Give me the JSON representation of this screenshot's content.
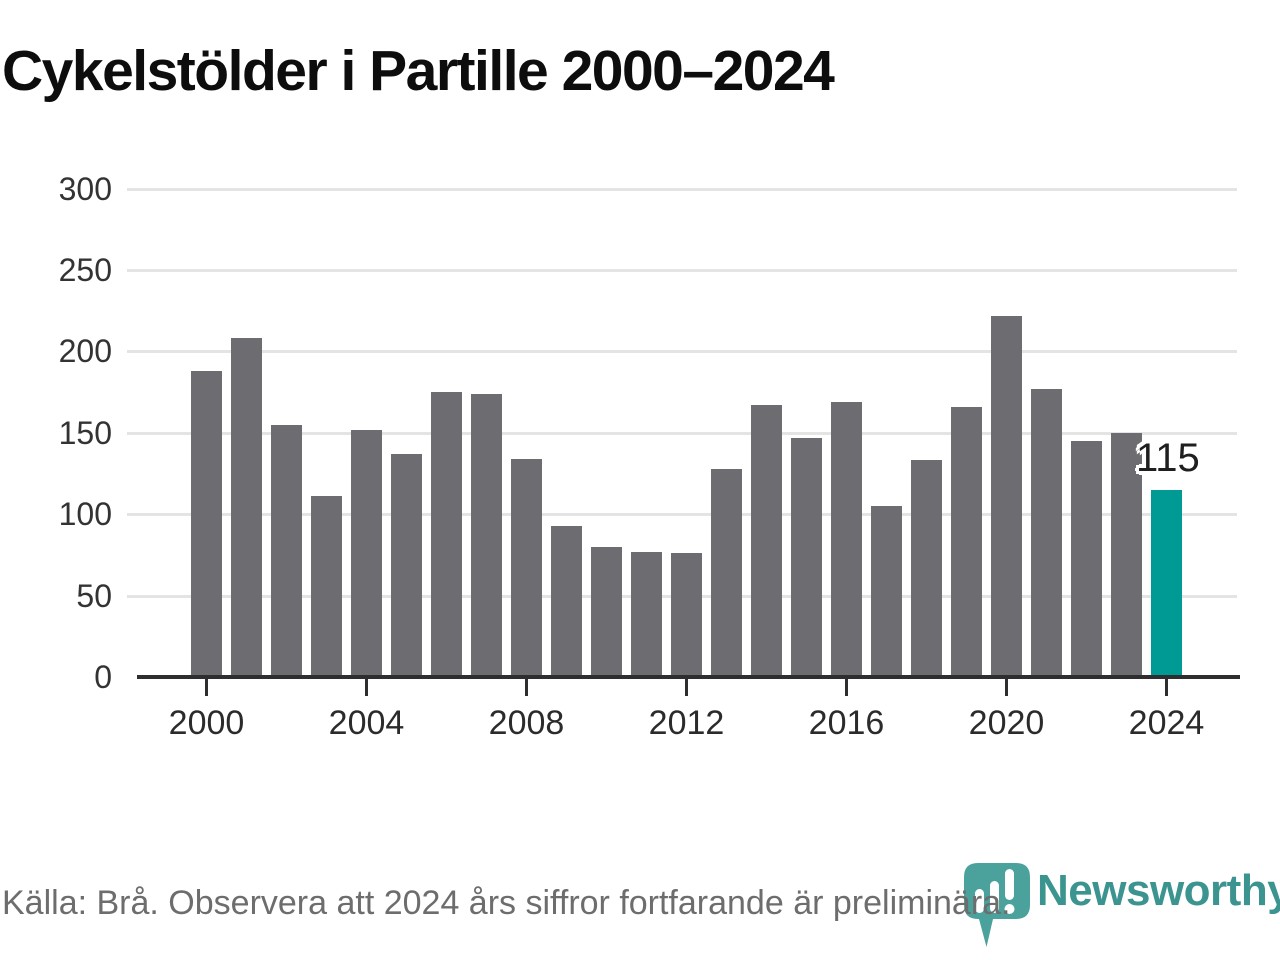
{
  "title": "Cykelstölder i Partille 2000–2024",
  "source_note": "Källa: Brå. Observera att 2024 års siffror fortfarande är preliminära.",
  "brand": {
    "name": "Newsworthy",
    "icon": "newsworthy-pin-barchart-icon"
  },
  "colors": {
    "bar": "#6c6c71",
    "highlight": "#009a94",
    "gridline": "#e4e4e4",
    "axis": "#2e2e31",
    "title_text": "#0d0d0d",
    "tick_label": "#333333",
    "source_text": "#6d6d6d",
    "brand_teal": "#3b948f",
    "logo_teal": "#4ba29c"
  },
  "chart_data": {
    "type": "bar",
    "title": "Cykelstölder i Partille 2000–2024",
    "xlabel": "",
    "ylabel": "",
    "x": [
      2000,
      2001,
      2002,
      2003,
      2004,
      2005,
      2006,
      2007,
      2008,
      2009,
      2010,
      2011,
      2012,
      2013,
      2014,
      2015,
      2016,
      2017,
      2018,
      2019,
      2020,
      2021,
      2022,
      2023,
      2024
    ],
    "values": [
      188,
      208,
      155,
      111,
      152,
      137,
      175,
      174,
      134,
      93,
      80,
      77,
      76,
      128,
      167,
      147,
      169,
      105,
      133,
      166,
      222,
      177,
      145,
      150,
      115
    ],
    "highlight_index": 24,
    "highlighted_year": 2024,
    "x_tick_labels": [
      "2000",
      "2004",
      "2008",
      "2012",
      "2016",
      "2020",
      "2024"
    ],
    "y_ticks": [
      0,
      50,
      100,
      150,
      200,
      250,
      300
    ],
    "ylim": [
      0,
      300
    ],
    "grid": "horizontal",
    "legend": "none",
    "annotation": {
      "year": 2024,
      "text": "115"
    }
  }
}
